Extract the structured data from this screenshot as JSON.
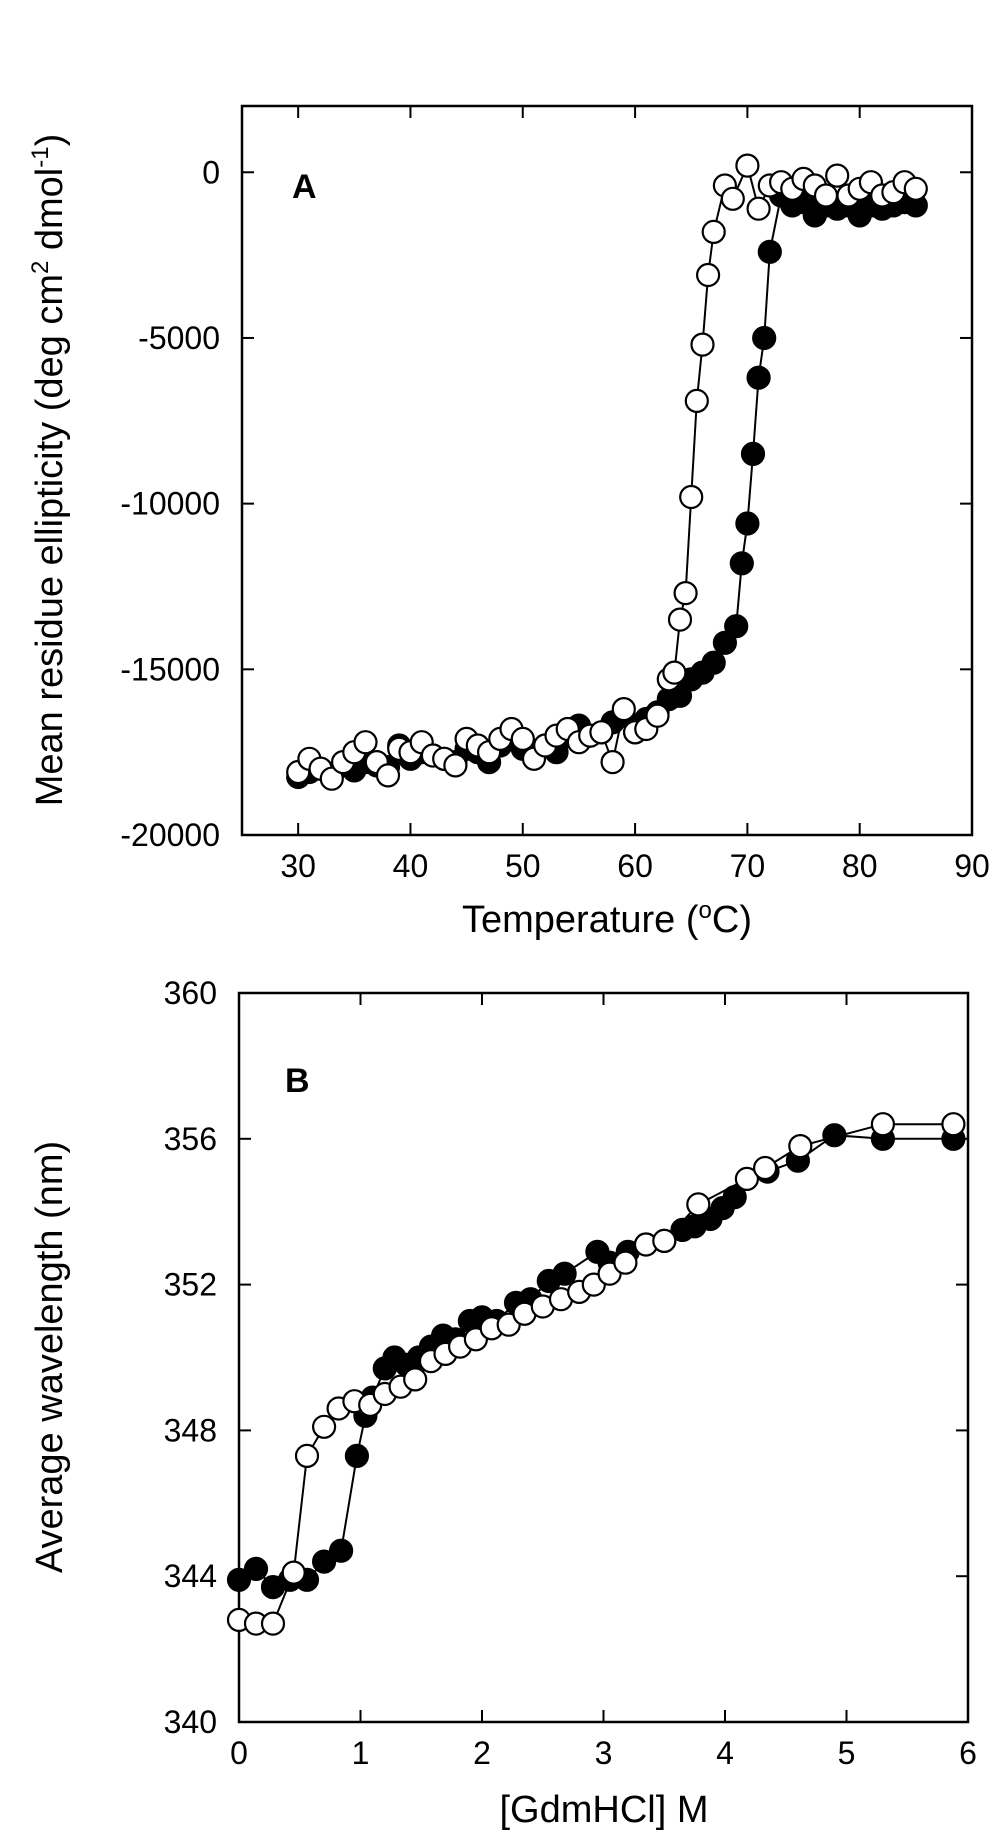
{
  "chart_data": [
    {
      "type": "scatter",
      "panel_label": "A",
      "xlabel": "Temperature (",
      "xlabel_sup": "o",
      "xlabel_end": "C)",
      "ylabel": "Mean residue ellipticity (deg cm",
      "ylabel_sup1": "2",
      "ylabel_mid": " dmol",
      "ylabel_sup2": "-1",
      "ylabel_end": ")",
      "xlim": [
        25,
        90
      ],
      "ylim": [
        -20000,
        2000
      ],
      "xticks": [
        30,
        40,
        50,
        60,
        70,
        80,
        90
      ],
      "yticks": [
        -20000,
        -15000,
        -10000,
        -5000,
        0
      ],
      "xtick_labels": [
        "30",
        "40",
        "50",
        "60",
        "70",
        "80",
        "90"
      ],
      "ytick_labels": [
        "-20000",
        "-15000",
        "-10000",
        "-5000",
        "0"
      ],
      "grid": false,
      "series": [
        {
          "name": "filled",
          "marker": "filled-circle",
          "color": "#000000",
          "points": [
            [
              30,
              -18250
            ],
            [
              31,
              -18100
            ],
            [
              32,
              -18000
            ],
            [
              33,
              -18150
            ],
            [
              34,
              -17900
            ],
            [
              35,
              -18050
            ],
            [
              36,
              -17800
            ],
            [
              37,
              -17900
            ],
            [
              38,
              -17950
            ],
            [
              39,
              -17300
            ],
            [
              40,
              -17700
            ],
            [
              41,
              -17500
            ],
            [
              42,
              -17600
            ],
            [
              43,
              -17700
            ],
            [
              44,
              -17800
            ],
            [
              45,
              -17400
            ],
            [
              46,
              -17500
            ],
            [
              47,
              -17800
            ],
            [
              48,
              -17300
            ],
            [
              49,
              -17100
            ],
            [
              50,
              -17400
            ],
            [
              51,
              -17600
            ],
            [
              52,
              -17300
            ],
            [
              53,
              -17500
            ],
            [
              54,
              -17000
            ],
            [
              55,
              -16700
            ],
            [
              56,
              -17000
            ],
            [
              57,
              -16900
            ],
            [
              58,
              -16600
            ],
            [
              59,
              -16400
            ],
            [
              60,
              -16900
            ],
            [
              61,
              -16500
            ],
            [
              62,
              -16300
            ],
            [
              63,
              -15900
            ],
            [
              64,
              -15800
            ],
            [
              65,
              -15300
            ],
            [
              66,
              -15100
            ],
            [
              67,
              -14800
            ],
            [
              68,
              -14200
            ],
            [
              69,
              -13700
            ],
            [
              69.5,
              -11800
            ],
            [
              70,
              -10600
            ],
            [
              70.5,
              -8500
            ],
            [
              71,
              -6200
            ],
            [
              71.5,
              -5000
            ],
            [
              72,
              -2400
            ],
            [
              73,
              -700
            ],
            [
              74,
              -1000
            ],
            [
              75,
              -900
            ],
            [
              76,
              -1300
            ],
            [
              77,
              -1000
            ],
            [
              78,
              -1100
            ],
            [
              79,
              -1000
            ],
            [
              80,
              -1300
            ],
            [
              81,
              -1000
            ],
            [
              82,
              -1100
            ],
            [
              83,
              -1000
            ],
            [
              84,
              -900
            ],
            [
              85,
              -1000
            ]
          ]
        },
        {
          "name": "open",
          "marker": "open-circle",
          "color": "#ffffff",
          "points": [
            [
              30,
              -18100
            ],
            [
              31,
              -17700
            ],
            [
              32,
              -18000
            ],
            [
              33,
              -18300
            ],
            [
              34,
              -17800
            ],
            [
              35,
              -17500
            ],
            [
              36,
              -17200
            ],
            [
              37,
              -17800
            ],
            [
              38,
              -18200
            ],
            [
              39,
              -17400
            ],
            [
              40,
              -17500
            ],
            [
              41,
              -17200
            ],
            [
              42,
              -17600
            ],
            [
              43,
              -17700
            ],
            [
              44,
              -17900
            ],
            [
              45,
              -17100
            ],
            [
              46,
              -17300
            ],
            [
              47,
              -17500
            ],
            [
              48,
              -17100
            ],
            [
              49,
              -16800
            ],
            [
              50,
              -17100
            ],
            [
              51,
              -17700
            ],
            [
              52,
              -17300
            ],
            [
              53,
              -17000
            ],
            [
              54,
              -16800
            ],
            [
              55,
              -17200
            ],
            [
              56,
              -17000
            ],
            [
              57,
              -16900
            ],
            [
              58,
              -17800
            ],
            [
              59,
              -16200
            ],
            [
              60,
              -16900
            ],
            [
              61,
              -16800
            ],
            [
              62,
              -16400
            ],
            [
              63,
              -15300
            ],
            [
              63.5,
              -15100
            ],
            [
              64,
              -13500
            ],
            [
              64.5,
              -12700
            ],
            [
              65,
              -9800
            ],
            [
              65.5,
              -6900
            ],
            [
              66,
              -5200
            ],
            [
              66.5,
              -3100
            ],
            [
              67,
              -1800
            ],
            [
              68,
              -400
            ],
            [
              68.7,
              -800
            ],
            [
              70,
              200
            ],
            [
              71,
              -1100
            ],
            [
              72,
              -400
            ],
            [
              73,
              -300
            ],
            [
              74,
              -500
            ],
            [
              75,
              -200
            ],
            [
              76,
              -400
            ],
            [
              77,
              -700
            ],
            [
              78,
              -100
            ],
            [
              79,
              -700
            ],
            [
              80,
              -500
            ],
            [
              81,
              -300
            ],
            [
              82,
              -700
            ],
            [
              83,
              -600
            ],
            [
              84,
              -300
            ],
            [
              85,
              -500
            ]
          ]
        }
      ]
    },
    {
      "type": "scatter",
      "panel_label": "B",
      "xlabel": "[GdmHCl] M",
      "ylabel": "Average wavelength (nm)",
      "xlim": [
        0,
        6
      ],
      "ylim": [
        340,
        360
      ],
      "xticks": [
        0,
        1,
        2,
        3,
        4,
        5,
        6
      ],
      "yticks": [
        340,
        344,
        348,
        352,
        356,
        360
      ],
      "xtick_labels": [
        "0",
        "1",
        "2",
        "3",
        "4",
        "5",
        "6"
      ],
      "ytick_labels": [
        "340",
        "344",
        "348",
        "352",
        "356",
        "360"
      ],
      "grid": false,
      "series": [
        {
          "name": "filled",
          "marker": "filled-circle",
          "color": "#000000",
          "points": [
            [
              0.0,
              343.9
            ],
            [
              0.14,
              344.2
            ],
            [
              0.28,
              343.7
            ],
            [
              0.42,
              343.9
            ],
            [
              0.56,
              343.9
            ],
            [
              0.7,
              344.4
            ],
            [
              0.84,
              344.7
            ],
            [
              0.97,
              347.3
            ],
            [
              1.04,
              348.4
            ],
            [
              1.1,
              348.9
            ],
            [
              1.2,
              349.7
            ],
            [
              1.28,
              350.0
            ],
            [
              1.38,
              349.8
            ],
            [
              1.48,
              350.0
            ],
            [
              1.58,
              350.3
            ],
            [
              1.68,
              350.6
            ],
            [
              1.78,
              350.5
            ],
            [
              1.9,
              351.0
            ],
            [
              2.0,
              351.1
            ],
            [
              2.12,
              351.0
            ],
            [
              2.28,
              351.5
            ],
            [
              2.4,
              351.6
            ],
            [
              2.55,
              352.1
            ],
            [
              2.68,
              352.3
            ],
            [
              2.95,
              352.9
            ],
            [
              3.05,
              352.6
            ],
            [
              3.2,
              352.9
            ],
            [
              3.35,
              353.1
            ],
            [
              3.5,
              353.2
            ],
            [
              3.65,
              353.5
            ],
            [
              3.75,
              353.6
            ],
            [
              3.88,
              353.8
            ],
            [
              3.98,
              354.1
            ],
            [
              4.08,
              354.4
            ],
            [
              4.35,
              355.1
            ],
            [
              4.6,
              355.4
            ],
            [
              4.9,
              356.1
            ],
            [
              5.3,
              356.0
            ],
            [
              5.88,
              356.0
            ]
          ]
        },
        {
          "name": "open",
          "marker": "open-circle",
          "color": "#ffffff",
          "points": [
            [
              0.0,
              342.8
            ],
            [
              0.14,
              342.7
            ],
            [
              0.28,
              342.7
            ],
            [
              0.45,
              344.1
            ],
            [
              0.56,
              347.3
            ],
            [
              0.7,
              348.1
            ],
            [
              0.82,
              348.6
            ],
            [
              0.95,
              348.8
            ],
            [
              1.08,
              348.7
            ],
            [
              1.2,
              349.0
            ],
            [
              1.33,
              349.2
            ],
            [
              1.45,
              349.4
            ],
            [
              1.58,
              349.9
            ],
            [
              1.7,
              350.1
            ],
            [
              1.82,
              350.3
            ],
            [
              1.95,
              350.5
            ],
            [
              2.08,
              350.8
            ],
            [
              2.22,
              350.9
            ],
            [
              2.35,
              351.2
            ],
            [
              2.5,
              351.4
            ],
            [
              2.65,
              351.6
            ],
            [
              2.8,
              351.8
            ],
            [
              2.92,
              352.0
            ],
            [
              3.05,
              352.3
            ],
            [
              3.18,
              352.6
            ],
            [
              3.35,
              353.1
            ],
            [
              3.5,
              353.2
            ],
            [
              3.78,
              354.2
            ],
            [
              4.18,
              354.9
            ],
            [
              4.33,
              355.2
            ],
            [
              4.62,
              355.8
            ],
            [
              5.3,
              356.4
            ],
            [
              5.88,
              356.4
            ]
          ]
        }
      ]
    }
  ]
}
